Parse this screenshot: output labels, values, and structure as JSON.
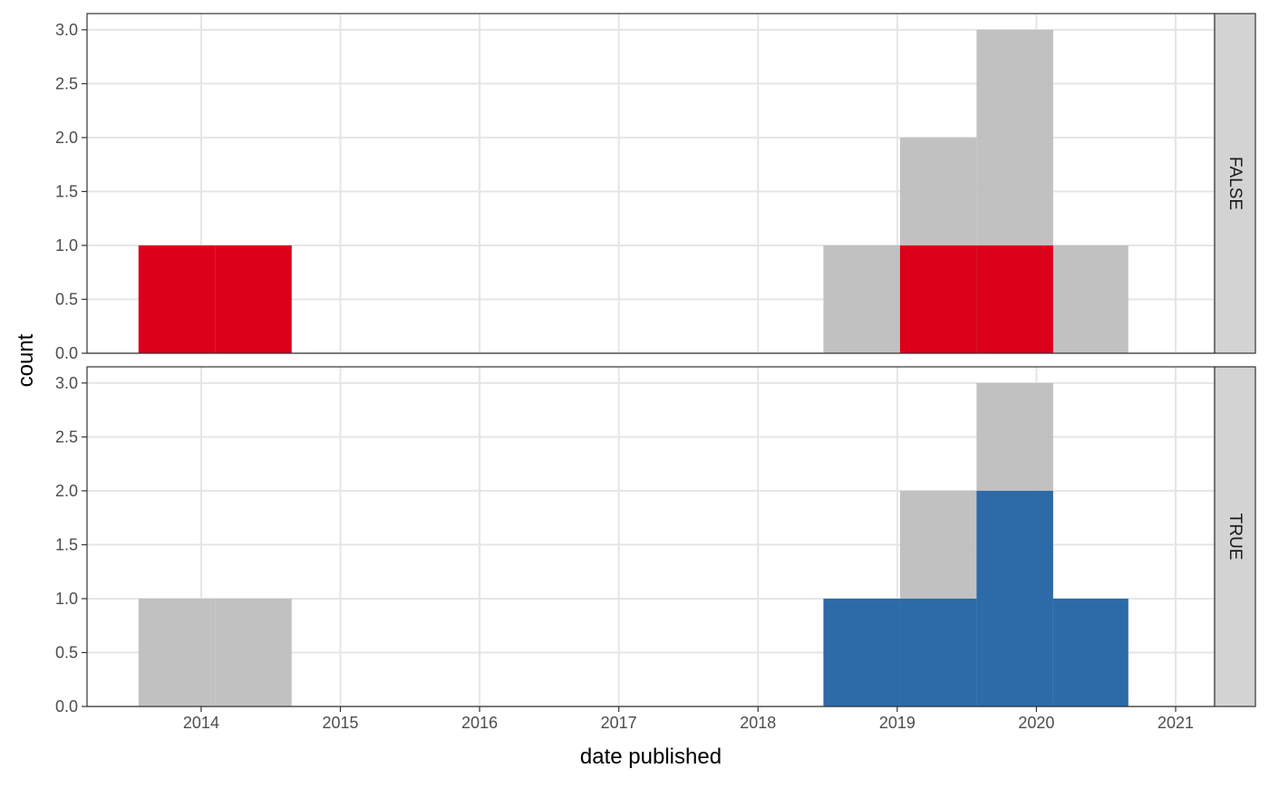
{
  "chart_data": {
    "type": "histogram",
    "xlabel": "date published",
    "ylabel": "count",
    "x_ticks": [
      "2014",
      "2015",
      "2016",
      "2017",
      "2018",
      "2019",
      "2020",
      "2021"
    ],
    "x_tick_values": [
      2014,
      2015,
      2016,
      2017,
      2018,
      2019,
      2020,
      2021
    ],
    "y_ticks": [
      "0.0",
      "0.5",
      "1.0",
      "1.5",
      "2.0",
      "2.5",
      "3.0"
    ],
    "y_tick_values": [
      0,
      0.5,
      1,
      1.5,
      2,
      2.5,
      3
    ],
    "ylim": [
      0,
      3.15
    ],
    "xlim": [
      2013.18,
      2021.28
    ],
    "grid": true,
    "colors": {
      "background_total": "#bebebe",
      "FALSE": "#dc001a",
      "TRUE": "#2c6aa8",
      "strip_fill": "#d3d3d3",
      "grid": "#e5e5e5"
    },
    "bins": [
      {
        "x_start": 2013.55,
        "x_end": 2014.1
      },
      {
        "x_start": 2014.1,
        "x_end": 2014.65
      },
      {
        "x_start": 2018.47,
        "x_end": 2019.02
      },
      {
        "x_start": 2019.02,
        "x_end": 2019.57
      },
      {
        "x_start": 2019.57,
        "x_end": 2020.12
      },
      {
        "x_start": 2020.12,
        "x_end": 2020.66
      }
    ],
    "background_counts": [
      1,
      1,
      1,
      2,
      3,
      1
    ],
    "panels": [
      {
        "name": "FALSE",
        "strip_label": "FALSE",
        "counts": [
          1,
          1,
          0,
          1,
          1,
          0
        ]
      },
      {
        "name": "TRUE",
        "strip_label": "TRUE",
        "counts": [
          0,
          0,
          1,
          1,
          2,
          1
        ]
      }
    ]
  }
}
